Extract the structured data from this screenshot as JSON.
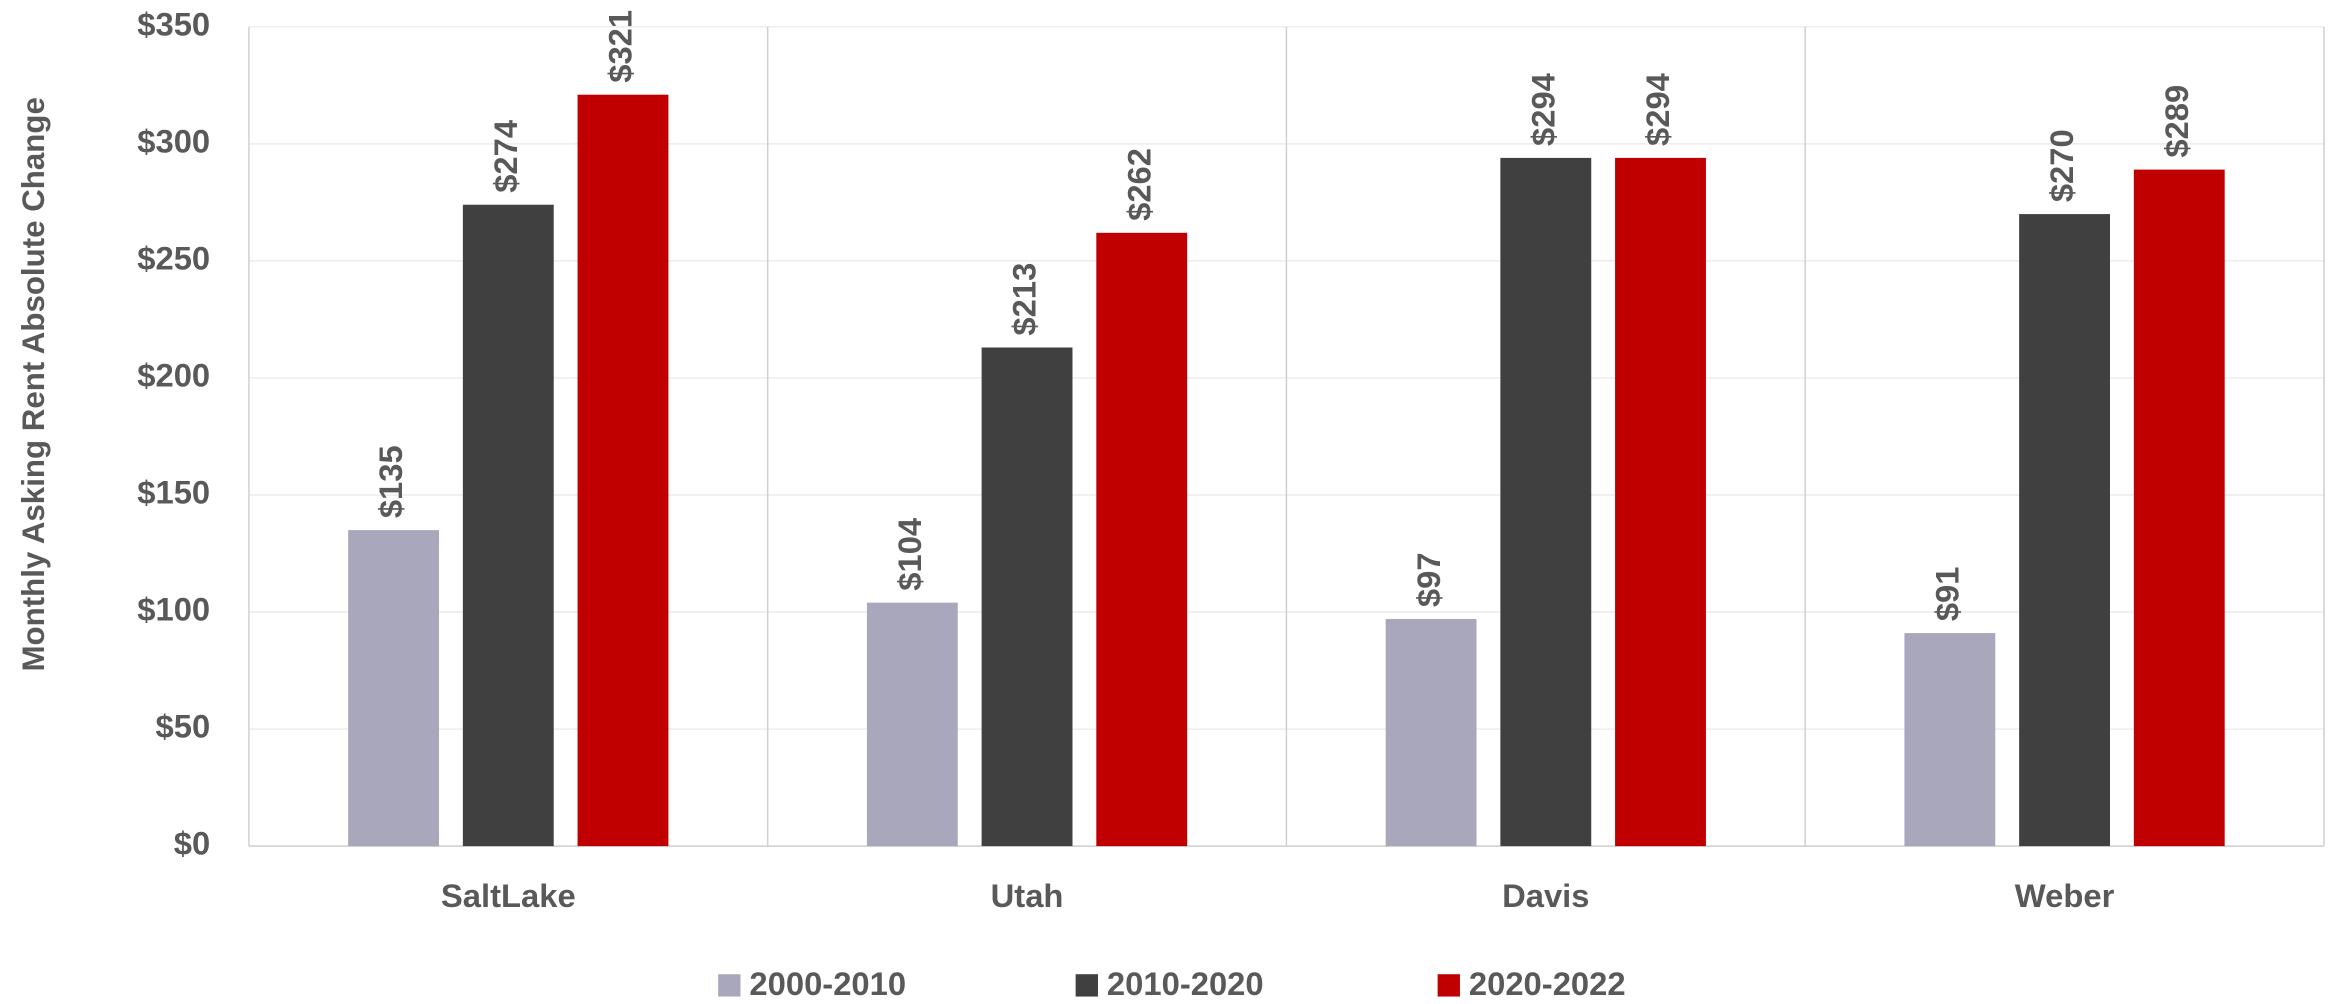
{
  "chart_data": {
    "type": "bar",
    "y_label": "Monthly Asking Rent Absolute Change",
    "categories": [
      "SaltLake",
      "Utah",
      "Davis",
      "Weber"
    ],
    "series": [
      {
        "name": "2000-2010",
        "color": "#a9a7bc",
        "values": [
          135,
          104,
          97,
          91
        ],
        "value_labels": [
          "$135",
          "$104",
          "$97",
          "$91"
        ]
      },
      {
        "name": "2010-2020",
        "color": "#404040",
        "values": [
          274,
          213,
          294,
          270
        ],
        "value_labels": [
          "$274",
          "$213",
          "$294",
          "$270"
        ]
      },
      {
        "name": "2020-2022",
        "color": "#c00000",
        "values": [
          321,
          262,
          294,
          289
        ],
        "value_labels": [
          "$321",
          "$262",
          "$294",
          "$289"
        ]
      }
    ],
    "ylim": [
      0,
      350
    ],
    "yticks": [
      {
        "value": 0,
        "label": "$0"
      },
      {
        "value": 50,
        "label": "$50"
      },
      {
        "value": 100,
        "label": "$100"
      },
      {
        "value": 150,
        "label": "$150"
      },
      {
        "value": 200,
        "label": "$200"
      },
      {
        "value": 250,
        "label": "$250"
      },
      {
        "value": 300,
        "label": "$300"
      },
      {
        "value": 350,
        "label": "$350"
      }
    ],
    "grid": true,
    "legend": "bottom"
  }
}
